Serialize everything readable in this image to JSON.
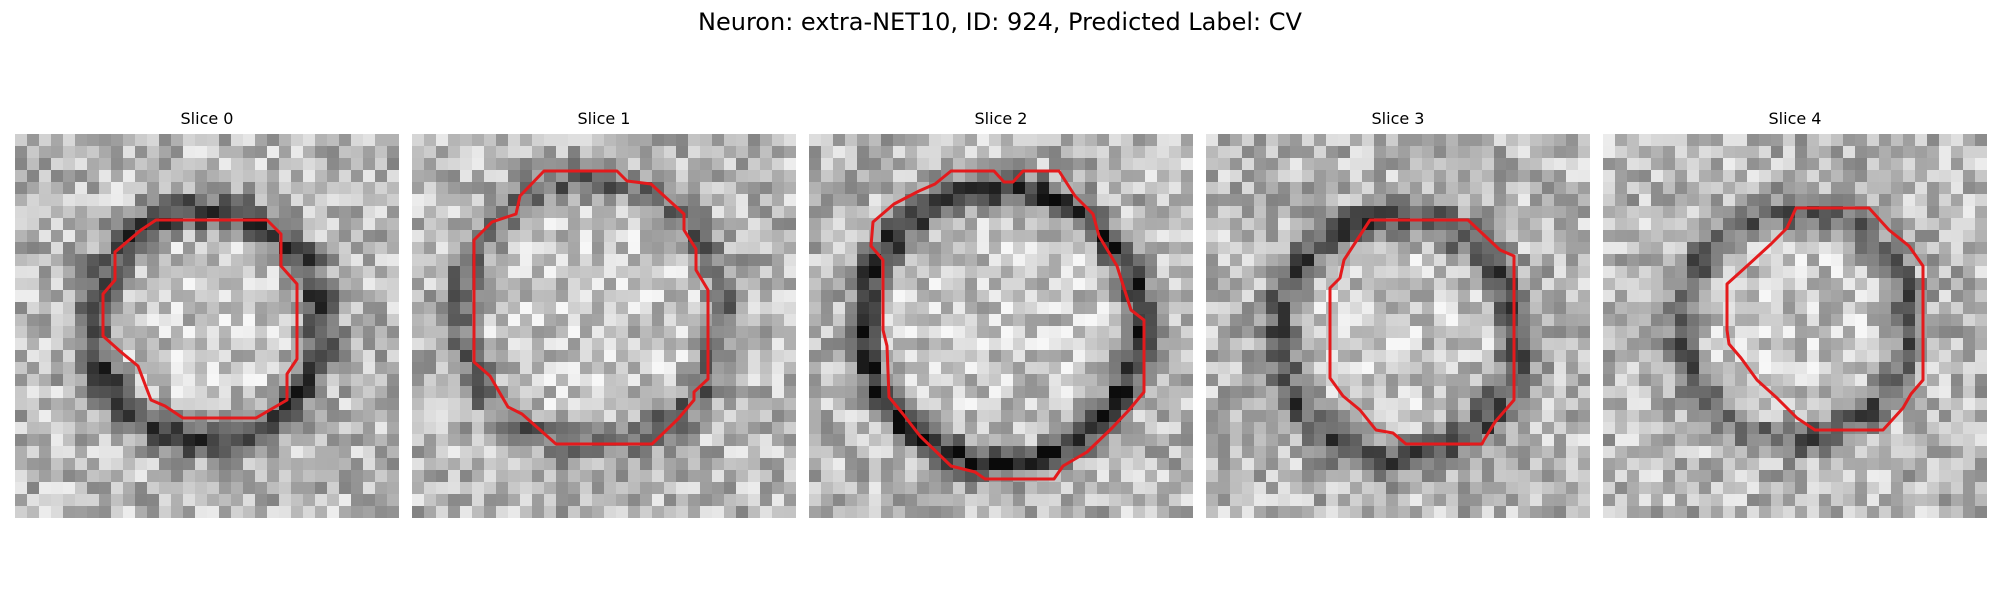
{
  "figure": {
    "title": "Neuron: extra-NET10, ID: 924, Predicted Label: CV",
    "slices": [
      {
        "label": "Slice 0"
      },
      {
        "label": "Slice 1"
      },
      {
        "label": "Slice 2"
      },
      {
        "label": "Slice 3"
      },
      {
        "label": "Slice 4"
      }
    ]
  },
  "colors": {
    "contour": "#e41a1c",
    "background": "#ffffff"
  }
}
